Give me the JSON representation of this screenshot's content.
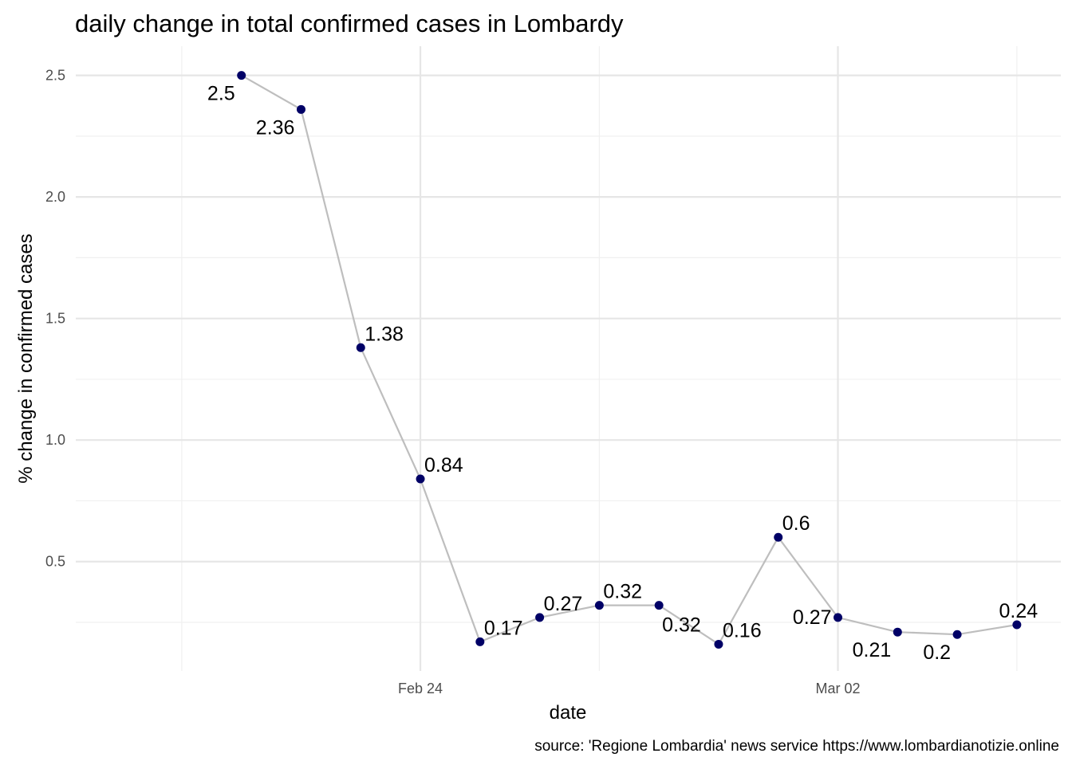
{
  "chart_data": {
    "type": "line",
    "title": "daily change in total confirmed cases in Lombardy",
    "xlabel": "date",
    "ylabel": "% change in confirmed cases",
    "caption": "source: 'Regione Lombardia' news service https://www.lombardianotizie.online",
    "x_axis": {
      "type": "date",
      "range": [
        "2020-02-19",
        "2020-03-05"
      ],
      "major_ticks": [
        {
          "date": "2020-02-24",
          "label": "Feb 24"
        },
        {
          "date": "2020-03-02",
          "label": "Mar 02"
        }
      ],
      "minor_ticks": [
        "2020-02-20",
        "2020-02-27",
        "2020-03-05"
      ]
    },
    "y_axis": {
      "range": [
        0.05,
        2.62
      ],
      "major_ticks": [
        {
          "value": 0.5,
          "label": "0.5"
        },
        {
          "value": 1.0,
          "label": "1.0"
        },
        {
          "value": 1.5,
          "label": "1.5"
        },
        {
          "value": 2.0,
          "label": "2.0"
        },
        {
          "value": 2.5,
          "label": "2.5"
        }
      ],
      "minor_ticks": [
        0.25,
        0.75,
        1.25,
        1.75,
        2.25
      ]
    },
    "grid": true,
    "colors": {
      "line": "#bebebe",
      "point": "#000066",
      "grid_major": "#e6e6e6",
      "grid_minor": "#f0f0f0"
    },
    "points": [
      {
        "x": "2020-02-21",
        "y": 2.5,
        "label": "2.5",
        "label_pos": "below-left"
      },
      {
        "x": "2020-02-22",
        "y": 2.36,
        "label": "2.36",
        "label_pos": "below-left"
      },
      {
        "x": "2020-02-23",
        "y": 1.38,
        "label": "1.38",
        "label_pos": "above-right"
      },
      {
        "x": "2020-02-24",
        "y": 0.84,
        "label": "0.84",
        "label_pos": "above-right"
      },
      {
        "x": "2020-02-25",
        "y": 0.17,
        "label": "0.17",
        "label_pos": "above-right"
      },
      {
        "x": "2020-02-26",
        "y": 0.27,
        "label": "0.27",
        "label_pos": "above-right"
      },
      {
        "x": "2020-02-27",
        "y": 0.32,
        "label": "0.32",
        "label_pos": "above-right"
      },
      {
        "x": "2020-02-28",
        "y": 0.32,
        "label": "0.32",
        "label_pos": "below-right"
      },
      {
        "x": "2020-02-29",
        "y": 0.16,
        "label": "0.16",
        "label_pos": "above-right"
      },
      {
        "x": "2020-03-01",
        "y": 0.6,
        "label": "0.6",
        "label_pos": "above-right"
      },
      {
        "x": "2020-03-02",
        "y": 0.27,
        "label": "0.27",
        "label_pos": "left"
      },
      {
        "x": "2020-03-03",
        "y": 0.21,
        "label": "0.21",
        "label_pos": "below-left"
      },
      {
        "x": "2020-03-04",
        "y": 0.2,
        "label": "0.2",
        "label_pos": "below-left"
      },
      {
        "x": "2020-03-05",
        "y": 0.24,
        "label": "0.24",
        "label_pos": "above"
      }
    ]
  }
}
